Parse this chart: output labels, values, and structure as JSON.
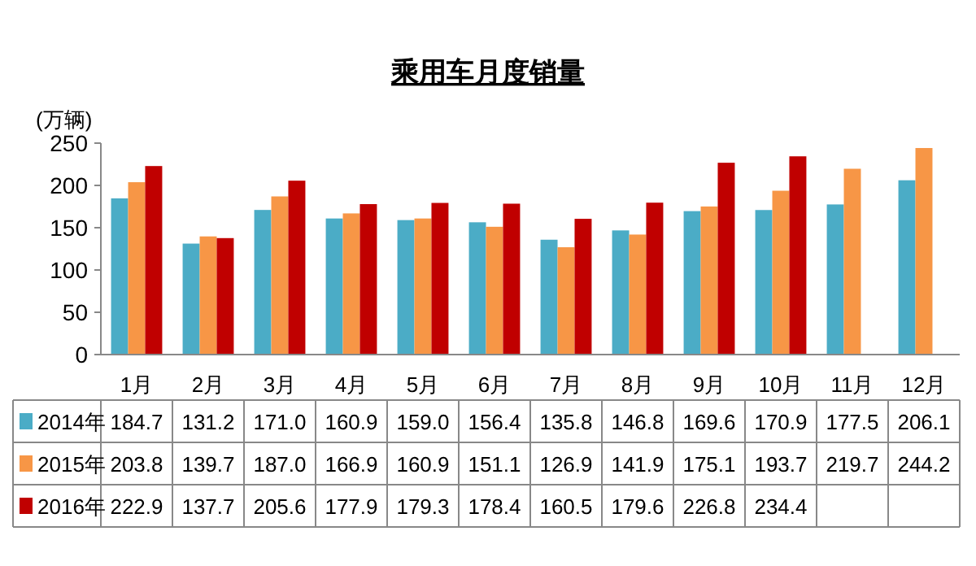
{
  "chart_data": {
    "type": "bar",
    "title": "乘用车月度销量",
    "ylabel": "(万辆)",
    "categories": [
      "1月",
      "2月",
      "3月",
      "4月",
      "5月",
      "6月",
      "7月",
      "8月",
      "9月",
      "10月",
      "11月",
      "12月"
    ],
    "series": [
      {
        "name": "2014年",
        "color": "#4bacc6",
        "values": [
          184.7,
          131.2,
          171.0,
          160.9,
          159.0,
          156.4,
          135.8,
          146.8,
          169.6,
          170.9,
          177.5,
          206.1
        ],
        "value_labels": [
          "184.7",
          "131.2",
          "171.0",
          "160.9",
          "159.0",
          "156.4",
          "135.8",
          "146.8",
          "169.6",
          "170.9",
          "177.5",
          "206.1"
        ]
      },
      {
        "name": "2015年",
        "color": "#f79646",
        "values": [
          203.8,
          139.7,
          187.0,
          166.9,
          160.9,
          151.1,
          126.9,
          141.9,
          175.1,
          193.7,
          219.7,
          244.2
        ],
        "value_labels": [
          "203.8",
          "139.7",
          "187.0",
          "166.9",
          "160.9",
          "151.1",
          "126.9",
          "141.9",
          "175.1",
          "193.7",
          "219.7",
          "244.2"
        ]
      },
      {
        "name": "2016年",
        "color": "#c00000",
        "values": [
          222.9,
          137.7,
          205.6,
          177.9,
          179.3,
          178.4,
          160.5,
          179.6,
          226.8,
          234.4,
          null,
          null
        ],
        "value_labels": [
          "222.9",
          "137.7",
          "205.6",
          "177.9",
          "179.3",
          "178.4",
          "160.5",
          "179.6",
          "226.8",
          "234.4",
          null,
          null
        ]
      }
    ],
    "ylim": [
      0,
      250
    ],
    "yticks": [
      0,
      50,
      100,
      150,
      200,
      250
    ],
    "legend": "bottom"
  }
}
